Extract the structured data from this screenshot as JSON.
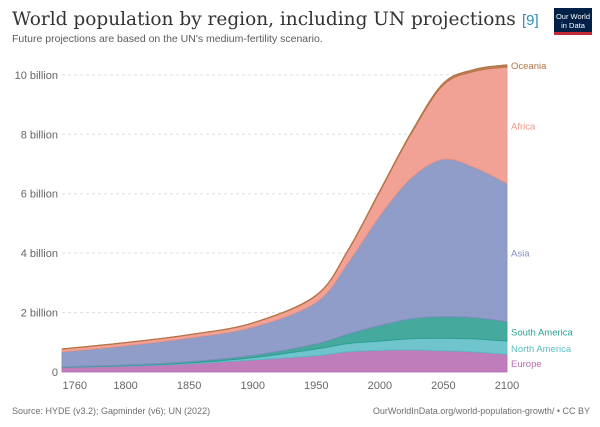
{
  "header": {
    "title": "World population by region, including UN projections",
    "subtitle": "Future projections are based on the UN's medium-fertility scenario.",
    "reference": "[9]",
    "logo": {
      "line1": "Our World",
      "line2": "in Data"
    }
  },
  "footer": {
    "source": "Source: HYDE (v3.2); Gapminder (v6); UN (2022)",
    "link": "OurWorldInData.org/world-population-growth/ • CC BY"
  },
  "chart_data": {
    "type": "area",
    "stacked": true,
    "title": "World population by region, including UN projections",
    "xlabel": "",
    "ylabel": "",
    "xlim": [
      1750,
      2100
    ],
    "ylim": [
      0,
      10500000000
    ],
    "x_ticks": [
      1760,
      1800,
      1850,
      1900,
      1950,
      2000,
      2050,
      2100
    ],
    "y_ticks": [
      {
        "value": 0,
        "label": "0"
      },
      {
        "value": 2000000000,
        "label": "2 billion"
      },
      {
        "value": 4000000000,
        "label": "4 billion"
      },
      {
        "value": 6000000000,
        "label": "6 billion"
      },
      {
        "value": 8000000000,
        "label": "8 billion"
      },
      {
        "value": 10000000000,
        "label": "10 billion"
      }
    ],
    "grid": true,
    "legend": "inline-right",
    "x": [
      1750,
      1800,
      1850,
      1900,
      1950,
      1975,
      2000,
      2025,
      2050,
      2075,
      2100
    ],
    "series": [
      {
        "name": "Europe",
        "color": "#b76bb3",
        "values": [
          160000000,
          200000000,
          275000000,
          400000000,
          550000000,
          675000000,
          725000000,
          740000000,
          710000000,
          670000000,
          590000000
        ]
      },
      {
        "name": "North America",
        "color": "#5cbdc6",
        "values": [
          2000000,
          7000000,
          27000000,
          80000000,
          225000000,
          280000000,
          315000000,
          380000000,
          420000000,
          440000000,
          450000000
        ]
      },
      {
        "name": "South America",
        "color": "#2b9e8f",
        "values": [
          10000000,
          25000000,
          40000000,
          75000000,
          170000000,
          320000000,
          520000000,
          670000000,
          730000000,
          710000000,
          650000000
        ]
      },
      {
        "name": "Asia",
        "color": "#7f8fc0",
        "values": [
          500000000,
          650000000,
          800000000,
          950000000,
          1400000000,
          2400000000,
          3700000000,
          4750000000,
          5300000000,
          5050000000,
          4650000000
        ]
      },
      {
        "name": "Africa",
        "color": "#ef9585",
        "values": [
          100000000,
          105000000,
          110000000,
          140000000,
          230000000,
          410000000,
          810000000,
          1500000000,
          2500000000,
          3250000000,
          3920000000
        ]
      },
      {
        "name": "Oceania",
        "color": "#b37344",
        "values": [
          2000000,
          2000000,
          2000000,
          6000000,
          13000000,
          21000000,
          31000000,
          45000000,
          58000000,
          67000000,
          75000000
        ]
      }
    ]
  }
}
